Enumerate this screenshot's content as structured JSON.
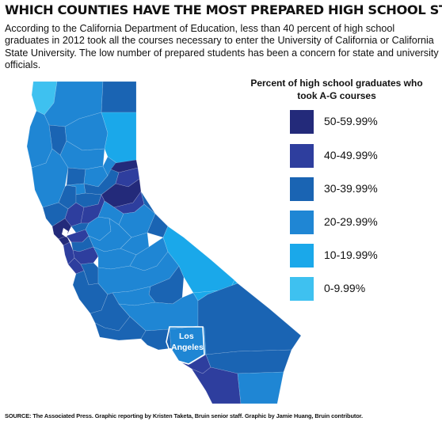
{
  "title": "WHICH COUNTIES HAVE THE MOST PREPARED HIGH SCHOOL STUDENTS?",
  "intro": "According to the California Department of Education, less than 40 percent of high school graduates in 2012 took all the courses necessary to enter the University of California or California State University. The low number of prepared students has been a concern for state and university officials.",
  "legend": {
    "title": "Percent of high school graduates who took A-G courses",
    "items": [
      {
        "label": "50-59.99%",
        "color": "#232a7a"
      },
      {
        "label": "40-49.99%",
        "color": "#2e3e9e"
      },
      {
        "label": "30-39.99%",
        "color": "#1a64b3"
      },
      {
        "label": "20-29.99%",
        "color": "#1f86d4"
      },
      {
        "label": "10-19.99%",
        "color": "#1aa8ea"
      },
      {
        "label": "0-9.99%",
        "color": "#3ec1f0"
      }
    ]
  },
  "map": {
    "callout": {
      "line1": "Los",
      "line2": "Angeles"
    },
    "regions": [
      {
        "name": "del-norte",
        "bin": "0-9.99%"
      },
      {
        "name": "siskiyou",
        "bin": "20-29.99%"
      },
      {
        "name": "modoc",
        "bin": "30-39.99%"
      },
      {
        "name": "humboldt",
        "bin": "20-29.99%"
      },
      {
        "name": "trinity",
        "bin": "30-39.99%"
      },
      {
        "name": "shasta",
        "bin": "20-29.99%"
      },
      {
        "name": "lassen",
        "bin": "10-19.99%"
      },
      {
        "name": "tehama",
        "bin": "20-29.99%"
      },
      {
        "name": "mendocino",
        "bin": "20-29.99%"
      },
      {
        "name": "glenn",
        "bin": "30-39.99%"
      },
      {
        "name": "butte",
        "bin": "20-29.99%"
      },
      {
        "name": "plumas",
        "bin": "20-29.99%"
      },
      {
        "name": "sierra-nevada",
        "bin": "50-59.99%"
      },
      {
        "name": "lake",
        "bin": "30-39.99%"
      },
      {
        "name": "colusa",
        "bin": "20-29.99%"
      },
      {
        "name": "sutter-yuba",
        "bin": "30-39.99%"
      },
      {
        "name": "placer",
        "bin": "40-49.99%"
      },
      {
        "name": "el-dorado",
        "bin": "50-59.99%"
      },
      {
        "name": "sonoma",
        "bin": "30-39.99%"
      },
      {
        "name": "napa",
        "bin": "40-49.99%"
      },
      {
        "name": "yolo",
        "bin": "30-39.99%"
      },
      {
        "name": "sacramento",
        "bin": "40-49.99%"
      },
      {
        "name": "marin",
        "bin": "50-59.99%"
      },
      {
        "name": "solano",
        "bin": "30-39.99%"
      },
      {
        "name": "contra-costa",
        "bin": "40-49.99%"
      },
      {
        "name": "san-francisco",
        "bin": "50-59.99%"
      },
      {
        "name": "alameda",
        "bin": "30-39.99%"
      },
      {
        "name": "san-mateo",
        "bin": "40-49.99%"
      },
      {
        "name": "santa-clara",
        "bin": "40-49.99%"
      },
      {
        "name": "san-joaquin",
        "bin": "20-29.99%"
      },
      {
        "name": "amador-calaveras",
        "bin": "20-29.99%"
      },
      {
        "name": "alpine",
        "bin": "40-49.99%"
      },
      {
        "name": "tuolumne",
        "bin": "20-29.99%"
      },
      {
        "name": "mono",
        "bin": "30-39.99%"
      },
      {
        "name": "stanislaus",
        "bin": "20-29.99%"
      },
      {
        "name": "mariposa",
        "bin": "20-29.99%"
      },
      {
        "name": "merced",
        "bin": "20-29.99%"
      },
      {
        "name": "madera",
        "bin": "20-29.99%"
      },
      {
        "name": "santa-cruz",
        "bin": "40-49.99%"
      },
      {
        "name": "san-benito",
        "bin": "30-39.99%"
      },
      {
        "name": "monterey",
        "bin": "30-39.99%"
      },
      {
        "name": "fresno",
        "bin": "20-29.99%"
      },
      {
        "name": "tulare",
        "bin": "30-39.99%"
      },
      {
        "name": "kings",
        "bin": "20-29.99%"
      },
      {
        "name": "inyo",
        "bin": "10-19.99%"
      },
      {
        "name": "san-luis-obispo",
        "bin": "30-39.99%"
      },
      {
        "name": "kern",
        "bin": "20-29.99%"
      },
      {
        "name": "kern-east-strip",
        "bin": "10-19.99%"
      },
      {
        "name": "santa-barbara",
        "bin": "30-39.99%"
      },
      {
        "name": "ventura",
        "bin": "30-39.99%"
      },
      {
        "name": "los-angeles",
        "bin": "20-29.99%"
      },
      {
        "name": "san-bernardino",
        "bin": "30-39.99%"
      },
      {
        "name": "orange",
        "bin": "40-49.99%"
      },
      {
        "name": "riverside",
        "bin": "30-39.99%"
      },
      {
        "name": "san-diego",
        "bin": "40-49.99%"
      },
      {
        "name": "imperial",
        "bin": "20-29.99%"
      }
    ]
  },
  "source": "SOURCE: The Associated Press. Graphic reporting by Kristen Taketa, Bruin senior staff. Graphic by Jamie Huang, Bruin contributor."
}
